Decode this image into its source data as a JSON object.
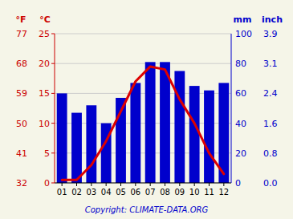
{
  "chart_data": {
    "type": "bar",
    "categories": [
      "01",
      "02",
      "03",
      "04",
      "05",
      "06",
      "07",
      "08",
      "09",
      "10",
      "11",
      "12"
    ],
    "series": [
      {
        "type": "bar",
        "axis": "y2",
        "color": "#0000cc",
        "values": [
          60,
          47,
          52,
          40,
          57,
          67,
          81,
          81,
          75,
          65,
          62,
          67
        ]
      },
      {
        "type": "line",
        "axis": "y",
        "color": "#dd0000",
        "values": [
          0.5,
          0.5,
          3.0,
          7.0,
          12.0,
          17.0,
          19.5,
          19.0,
          14.0,
          10.0,
          5.0,
          1.5
        ]
      }
    ],
    "ylabel": "°C",
    "ylabel_f": "°F",
    "y2label": "mm",
    "y2label_inch": "inch",
    "ylim": [
      0,
      25
    ],
    "yticks": [
      0,
      5,
      10,
      15,
      20,
      25
    ],
    "yticks_f": [
      {
        "value": 0,
        "label": "32"
      },
      {
        "value": 5,
        "label": "41"
      },
      {
        "value": 10,
        "label": "50"
      },
      {
        "value": 15,
        "label": "59"
      },
      {
        "value": 20,
        "label": "68"
      },
      {
        "value": 25,
        "label": "77"
      }
    ],
    "y2lim": [
      0,
      100
    ],
    "y2ticks": [
      0,
      20,
      40,
      60,
      80,
      100
    ],
    "y2ticks_inch": [
      {
        "value": 0,
        "label": "0.0"
      },
      {
        "value": 20,
        "label": "0.8"
      },
      {
        "value": 40,
        "label": "1.6"
      },
      {
        "value": 60,
        "label": "2.4"
      },
      {
        "value": 80,
        "label": "3.1"
      },
      {
        "value": 100,
        "label": "3.9"
      }
    ],
    "grid": true,
    "caption": "Copyright: CLIMATE-DATA.ORG",
    "caption_color": "#0000cc",
    "axis_colors": {
      "y": "#cc0000",
      "y2": "#0000cc"
    },
    "background": "#f5f5e8"
  }
}
